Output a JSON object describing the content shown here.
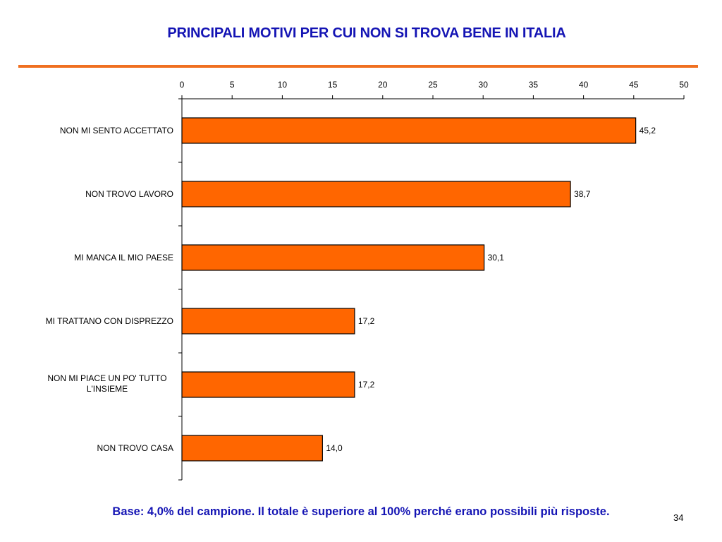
{
  "title": "PRINCIPALI MOTIVI PER CUI NON SI TROVA BENE IN ITALIA",
  "footnote": "Base: 4,0% del campione. Il totale è superiore al 100% perché erano possibili più risposte.",
  "page_number": "34",
  "colors": {
    "title": "#1414b4",
    "accent_rule": "#f07020",
    "bar_fill": "#ff6600",
    "bar_stroke": "#000000"
  },
  "chart_data": {
    "type": "bar",
    "orientation": "horizontal",
    "categories": [
      [
        "NON MI SENTO ACCETTATO"
      ],
      [
        "NON TROVO LAVORO"
      ],
      [
        "MI MANCA IL MIO PAESE"
      ],
      [
        "MI TRATTANO CON DISPREZZO"
      ],
      [
        "NON MI PIACE UN PO' TUTTO",
        "L'INSIEME"
      ],
      [
        "NON TROVO CASA"
      ]
    ],
    "values": [
      45.2,
      38.7,
      30.1,
      17.2,
      17.2,
      14.0
    ],
    "value_labels": [
      "45,2",
      "38,7",
      "30,1",
      "17,2",
      "17,2",
      "14,0"
    ],
    "xlim": [
      0,
      50
    ],
    "xticks": [
      0,
      5,
      10,
      15,
      20,
      25,
      30,
      35,
      40,
      45,
      50
    ],
    "axis_position": "top",
    "grid": false,
    "legend": "none"
  }
}
